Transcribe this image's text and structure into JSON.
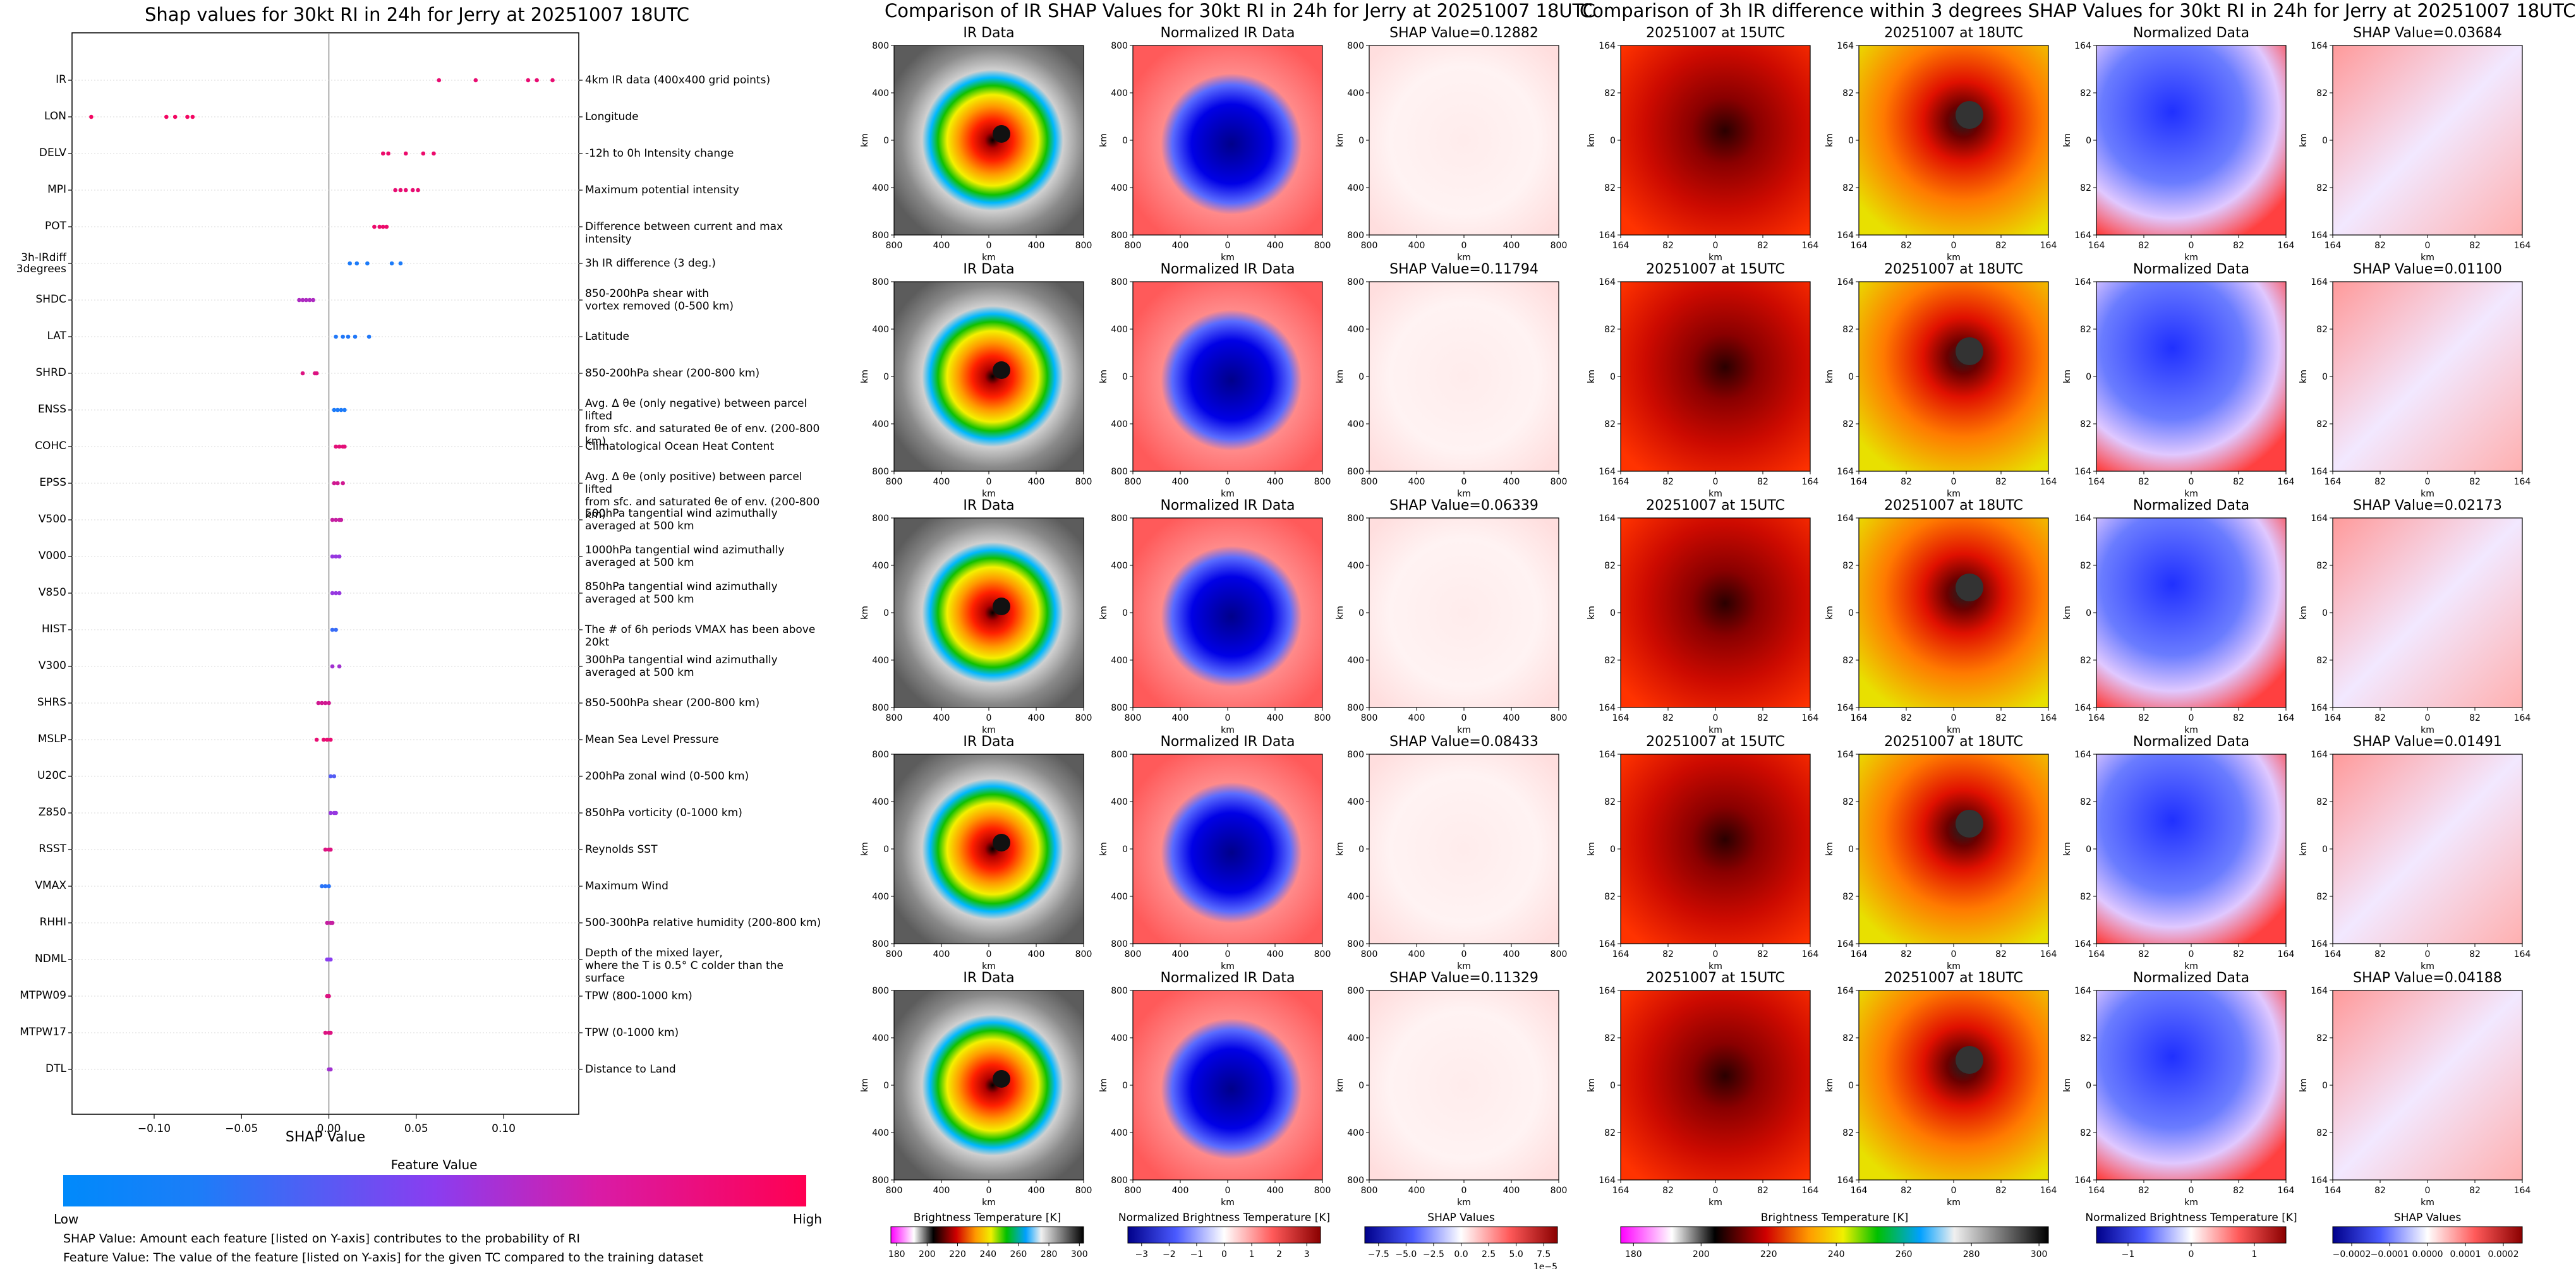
{
  "titles": {
    "left": "Shap values for 30kt RI in 24h for Jerry at 20251007 18UTC",
    "middle": "Comparison of IR SHAP Values for 30kt RI in 24h for Jerry at 20251007 18UTC",
    "right": "Comparison of 3h IR difference within 3 degrees SHAP Values for 30kt RI in 24h for Jerry at 20251007 18UTC"
  },
  "colors": {
    "low": "#008afb",
    "high": "#ff0052",
    "mid": "#8a3df0"
  },
  "chart_data": [
    {
      "type": "scatter",
      "title": "Shap values for 30kt RI in 24h for Jerry at 20251007 18UTC",
      "xlabel": "SHAP Value",
      "xlim": [
        -0.147,
        0.143
      ],
      "xticks": [
        "-0.10",
        "-0.05",
        "0.00",
        "0.05",
        "0.10"
      ],
      "xtick_values": [
        -0.1,
        -0.05,
        0.0,
        0.05,
        0.1
      ],
      "features": [
        {
          "name": "IR",
          "desc": "4km IR data (400x400 grid points)",
          "shap": [
            0.063,
            0.084,
            0.114,
            0.119,
            0.128
          ],
          "fv": 0.9
        },
        {
          "name": "LON",
          "desc": "Longitude",
          "shap": [
            -0.136,
            -0.093,
            -0.088,
            -0.081,
            -0.078
          ],
          "fv": 0.95
        },
        {
          "name": "DELV",
          "desc": "-12h to 0h Intensity change",
          "shap": [
            0.031,
            0.034,
            0.044,
            0.054,
            0.06
          ],
          "fv": 0.92
        },
        {
          "name": "MPI",
          "desc": "Maximum potential intensity",
          "shap": [
            0.038,
            0.041,
            0.044,
            0.048,
            0.051
          ],
          "fv": 0.9
        },
        {
          "name": "POT",
          "desc": "Difference between current and max intensity",
          "shap": [
            0.026,
            0.029,
            0.031,
            0.033
          ],
          "fv": 0.92
        },
        {
          "name": "3h-IRdiff\n3degrees",
          "desc": "3h IR difference (3 deg.)",
          "shap": [
            0.012,
            0.016,
            0.022,
            0.036,
            0.041
          ],
          "fv": 0.1
        },
        {
          "name": "SHDC",
          "desc": "850-200hPa shear with\nvortex removed (0-500 km)",
          "shap": [
            -0.017,
            -0.015,
            -0.013,
            -0.011,
            -0.009
          ],
          "fv": 0.65
        },
        {
          "name": "LAT",
          "desc": "Latitude",
          "shap": [
            0.004,
            0.008,
            0.011,
            0.015,
            0.023
          ],
          "fv": 0.12
        },
        {
          "name": "SHRD",
          "desc": "850-200hPa shear (200-800 km)",
          "shap": [
            -0.015,
            -0.008,
            -0.007
          ],
          "fv": 0.85
        },
        {
          "name": "ENSS",
          "desc": "Avg. Δ θe (only negative) between parcel lifted\nfrom sfc. and saturated θe of env. (200-800 km)",
          "shap": [
            0.003,
            0.005,
            0.007,
            0.009
          ],
          "fv": 0.1
        },
        {
          "name": "COHC",
          "desc": "Climatological Ocean Heat Content",
          "shap": [
            0.004,
            0.006,
            0.008,
            0.009
          ],
          "fv": 0.88
        },
        {
          "name": "EPSS",
          "desc": "Avg. Δ θe (only positive) between parcel lifted\nfrom sfc. and saturated θe of env. (200-800 km)",
          "shap": [
            0.003,
            0.005,
            0.008
          ],
          "fv": 0.8
        },
        {
          "name": "V500",
          "desc": "500hPa tangential wind azimuthally\naveraged at 500 km",
          "shap": [
            0.002,
            0.004,
            0.006,
            0.007
          ],
          "fv": 0.75
        },
        {
          "name": "V000",
          "desc": "1000hPa tangential wind azimuthally\naveraged at 500 km",
          "shap": [
            0.002,
            0.004,
            0.006
          ],
          "fv": 0.55
        },
        {
          "name": "V850",
          "desc": "850hPa tangential wind azimuthally\naveraged at 500 km",
          "shap": [
            0.002,
            0.004,
            0.006
          ],
          "fv": 0.55
        },
        {
          "name": "HIST",
          "desc": "The # of 6h periods VMAX has been above 20kt",
          "shap": [
            0.002,
            0.004
          ],
          "fv": 0.2
        },
        {
          "name": "V300",
          "desc": "300hPa tangential wind azimuthally\naveraged at 500 km",
          "shap": [
            0.002,
            0.006
          ],
          "fv": 0.6
        },
        {
          "name": "SHRS",
          "desc": "850-500hPa shear (200-800 km)",
          "shap": [
            -0.006,
            -0.004,
            -0.002,
            0.0
          ],
          "fv": 0.8
        },
        {
          "name": "MSLP",
          "desc": "Mean Sea Level Pressure",
          "shap": [
            -0.007,
            -0.003,
            -0.001,
            0.001
          ],
          "fv": 0.9
        },
        {
          "name": "U20C",
          "desc": "200hPa zonal wind (0-500 km)",
          "shap": [
            0.001,
            0.003
          ],
          "fv": 0.3
        },
        {
          "name": "Z850",
          "desc": "850hPa vorticity (0-1000 km)",
          "shap": [
            0.001,
            0.003,
            0.004
          ],
          "fv": 0.55
        },
        {
          "name": "RSST",
          "desc": "Reynolds SST",
          "shap": [
            -0.002,
            0.0,
            0.001
          ],
          "fv": 0.85
        },
        {
          "name": "VMAX",
          "desc": "Maximum Wind",
          "shap": [
            -0.004,
            -0.002,
            0.0
          ],
          "fv": 0.15
        },
        {
          "name": "RHHI",
          "desc": "500-300hPa relative humidity (200-800 km)",
          "shap": [
            -0.001,
            0.001,
            0.002
          ],
          "fv": 0.75
        },
        {
          "name": "NDML",
          "desc": "Depth of the mixed layer,\nwhere the T is 0.5° C colder than the surface",
          "shap": [
            -0.001,
            0.0,
            0.001
          ],
          "fv": 0.5
        },
        {
          "name": "MTPW09",
          "desc": "TPW (800-1000 km)",
          "shap": [
            -0.001,
            0.0
          ],
          "fv": 0.85
        },
        {
          "name": "MTPW17",
          "desc": "TPW (0-1000 km)",
          "shap": [
            -0.002,
            0.0,
            0.001
          ],
          "fv": 0.85
        },
        {
          "name": "DTL",
          "desc": "Distance to Land",
          "shap": [
            0.0,
            0.001
          ],
          "fv": 0.6
        }
      ],
      "colorbar": {
        "title": "Feature Value",
        "low_label": "Low",
        "high_label": "High"
      }
    },
    {
      "type": "heatmap",
      "title": "Comparison of IR SHAP Values for 30kt RI in 24h for Jerry at 20251007 18UTC",
      "columns": [
        "IR Data",
        "Normalized IR Data"
      ],
      "shap_titles": [
        "SHAP Value=0.12882",
        "SHAP Value=0.11794",
        "SHAP Value=0.06339",
        "SHAP Value=0.08433",
        "SHAP Value=0.11329"
      ],
      "axis_label": "km",
      "ticks": [
        "800",
        "400",
        "0",
        "400",
        "800"
      ],
      "colorbars": [
        {
          "title": "Brightness Temperature [K]",
          "ticks": [
            "180",
            "200",
            "220",
            "240",
            "260",
            "280",
            "300"
          ]
        },
        {
          "title": "Normalized Brightness Temperature [K]",
          "ticks": [
            "−3",
            "−2",
            "−1",
            "0",
            "1",
            "2",
            "3"
          ]
        },
        {
          "title": "SHAP Values",
          "ticks": [
            "−7.5",
            "−5.0",
            "−2.5",
            "0.0",
            "2.5",
            "5.0",
            "7.5"
          ],
          "exponent": "1e−5"
        }
      ]
    },
    {
      "type": "heatmap",
      "title": "Comparison of 3h IR difference within 3 degrees SHAP Values for 30kt RI in 24h for Jerry at 20251007 18UTC",
      "columns": [
        "20251007 at 15UTC",
        "20251007 at 18UTC",
        "Normalized Data"
      ],
      "shap_titles": [
        "SHAP Value=0.03684",
        "SHAP Value=0.01100",
        "SHAP Value=0.02173",
        "SHAP Value=0.01491",
        "SHAP Value=0.04188"
      ],
      "axis_label": "km",
      "ticks": [
        "164",
        "82",
        "0",
        "82",
        "164"
      ],
      "colorbars": [
        {
          "title": "Brightness Temperature [K]",
          "ticks": [
            "180",
            "200",
            "220",
            "240",
            "260",
            "280",
            "300"
          ]
        },
        {
          "title": "Normalized Brightness Temperature [K]",
          "ticks": [
            "−1",
            "0",
            "1"
          ]
        },
        {
          "title": "SHAP Values",
          "ticks": [
            "−0.0002",
            "−0.0001",
            "0.0000",
            "0.0001",
            "0.0002"
          ]
        }
      ]
    }
  ],
  "footnotes": [
    "SHAP Value: Amount each feature [listed on Y-axis] contributes to the probability of RI",
    "Feature Value: The value of the feature [listed on Y-axis] for the given TC compared to the training dataset"
  ]
}
